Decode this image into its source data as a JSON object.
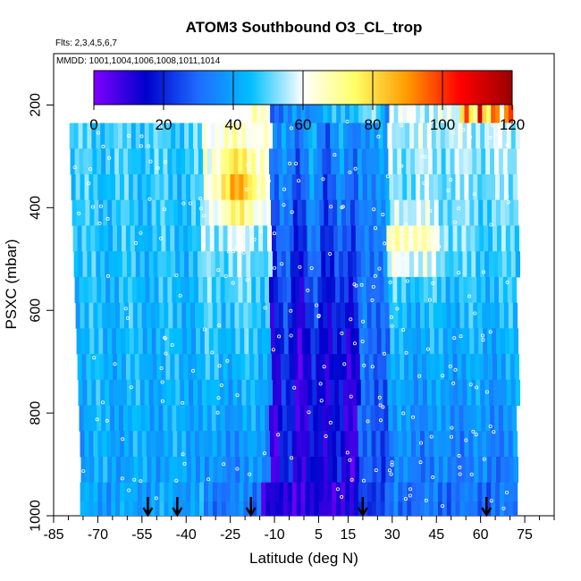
{
  "chart_data": {
    "type": "heatmap",
    "title": "ATOM3 Southbound O3_CL_trop",
    "flights_label": "Flts: 2,3,4,5,6,7",
    "dates_label": "MMDD: 1001,1004,1006,1008,1011,1014",
    "xlabel": "Latitude (deg N)",
    "ylabel": "PSXC (mbar)",
    "xlim": [
      -85,
      85
    ],
    "ylim": [
      1000,
      100
    ],
    "x_ticks": [
      -85,
      -70,
      -55,
      -40,
      -25,
      -10,
      5,
      15,
      30,
      45,
      60,
      75
    ],
    "y_ticks": [
      200,
      400,
      600,
      800,
      1000
    ],
    "colorbar": {
      "min": 0,
      "max": 120,
      "ticks": [
        0,
        20,
        40,
        60,
        80,
        100,
        120
      ],
      "colors": [
        "#7f00ff",
        "#0000cc",
        "#1e6cff",
        "#00bfff",
        "#ffffff",
        "#ffff66",
        "#ff9900",
        "#ff0000",
        "#990000"
      ]
    },
    "pressure_levels": [
      210,
      260,
      310,
      360,
      410,
      460,
      510,
      560,
      610,
      660,
      710,
      760,
      810,
      860,
      910,
      960,
      985
    ],
    "latitude_range": [
      -80,
      72
    ],
    "profile_arrows_lat": [
      -53,
      -43,
      -18,
      20,
      62
    ],
    "grid": false,
    "legend": "top-center"
  }
}
